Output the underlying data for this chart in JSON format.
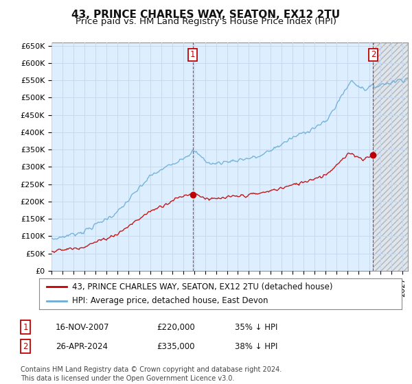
{
  "title": "43, PRINCE CHARLES WAY, SEATON, EX12 2TU",
  "subtitle": "Price paid vs. HM Land Registry's House Price Index (HPI)",
  "ylim": [
    0,
    660000
  ],
  "yticks": [
    0,
    50000,
    100000,
    150000,
    200000,
    250000,
    300000,
    350000,
    400000,
    450000,
    500000,
    550000,
    600000,
    650000
  ],
  "xlim_start": 1995.0,
  "xlim_end": 2027.5,
  "hpi_color": "#6baed6",
  "hpi_fill_color": "#ddeeff",
  "price_color": "#c00000",
  "sale1_date": 2007.88,
  "sale1_price": 220000,
  "sale1_label": "1",
  "sale2_date": 2024.33,
  "sale2_price": 335000,
  "sale2_label": "2",
  "grid_color": "#c8d8ee",
  "background_color": "#ffffff",
  "plot_bg_color": "#ddeeff",
  "hatch_bg_color": "#e0e0e0",
  "hatch_edge_color": "#aaaaaa",
  "legend_line1": "43, PRINCE CHARLES WAY, SEATON, EX12 2TU (detached house)",
  "legend_line2": "HPI: Average price, detached house, East Devon",
  "table_row1": [
    "1",
    "16-NOV-2007",
    "£220,000",
    "35% ↓ HPI"
  ],
  "table_row2": [
    "2",
    "26-APR-2024",
    "£335,000",
    "38% ↓ HPI"
  ],
  "footnote": "Contains HM Land Registry data © Crown copyright and database right 2024.\nThis data is licensed under the Open Government Licence v3.0.",
  "title_fontsize": 11,
  "subtitle_fontsize": 9.5,
  "tick_fontsize": 8,
  "legend_fontsize": 8.5,
  "table_fontsize": 8.5,
  "footnote_fontsize": 7
}
